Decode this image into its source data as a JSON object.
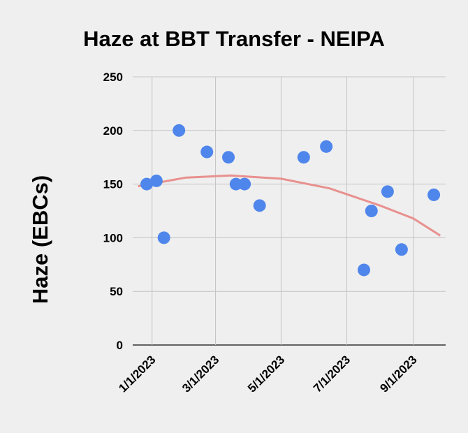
{
  "chart_data": {
    "type": "scatter",
    "title": "Haze at BBT Transfer - NEIPA",
    "y_label": "Haze (EBCs)",
    "x": [
      "2022-12-27",
      "2023-01-05",
      "2023-01-12",
      "2023-01-26",
      "2023-02-21",
      "2023-03-13",
      "2023-03-20",
      "2023-03-28",
      "2023-04-11",
      "2023-05-22",
      "2023-06-12",
      "2023-07-17",
      "2023-07-24",
      "2023-08-08",
      "2023-08-21",
      "2023-09-20"
    ],
    "series": [
      {
        "color": "#4f86ec",
        "values": [
          150,
          153,
          100,
          200,
          180,
          175,
          150,
          150,
          130,
          175,
          185,
          70,
          125,
          143,
          89,
          140
        ]
      }
    ],
    "trendline": {
      "color": "#e8918f",
      "x": [
        "2022-12-19",
        "2023-02-01",
        "2023-03-15",
        "2023-05-01",
        "2023-06-15",
        "2023-08-01",
        "2023-09-01",
        "2023-09-26"
      ],
      "values": [
        148,
        156,
        158,
        155,
        146,
        130,
        118,
        102
      ]
    },
    "xlim": [
      "2022-12-14",
      "2023-10-01"
    ],
    "xticks": [
      {
        "value": "2023-01-01",
        "label": "1/1/2023"
      },
      {
        "value": "2023-03-01",
        "label": "3/1/2023"
      },
      {
        "value": "2023-05-01",
        "label": "5/1/2023"
      },
      {
        "value": "2023-07-01",
        "label": "7/1/2023"
      },
      {
        "value": "2023-09-01",
        "label": "9/1/2023"
      }
    ],
    "ylim": [
      0,
      250
    ],
    "yticks": [
      0,
      50,
      100,
      150,
      200,
      250
    ],
    "grid": true
  }
}
